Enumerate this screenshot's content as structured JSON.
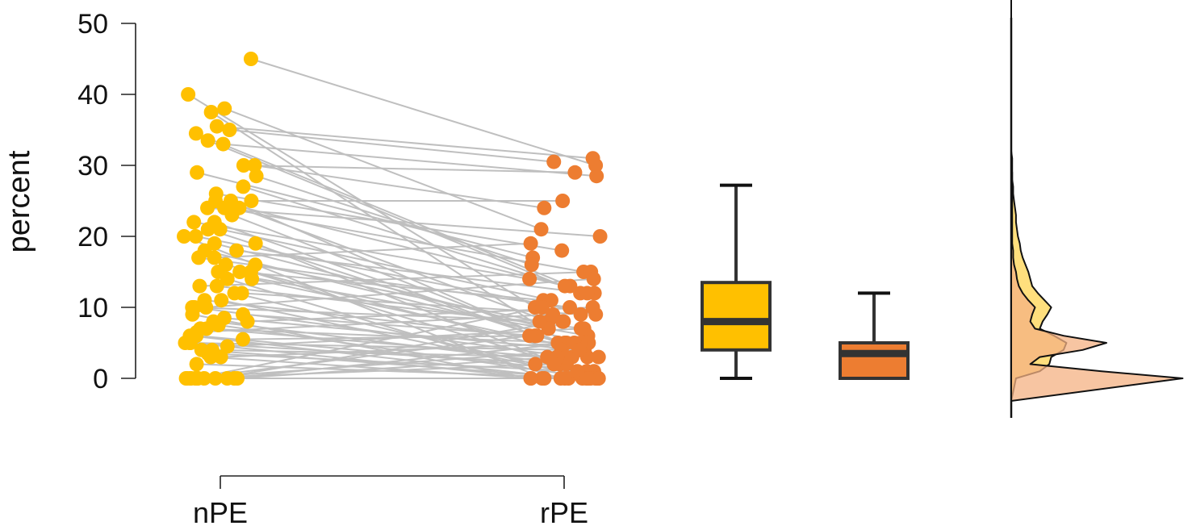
{
  "chart_data": {
    "type": "paired-dot-box-density",
    "title": "",
    "ylabel": "percent",
    "xlabel": "",
    "ylim": [
      0,
      50
    ],
    "yticks": [
      0,
      10,
      20,
      30,
      40,
      50
    ],
    "grid": false,
    "categories": [
      "nPE",
      "rPE"
    ],
    "colors": {
      "nPE": "#FFC000",
      "rPE": "#ED7D31",
      "lines": "#BFBFBF",
      "box_outline": "#333333",
      "density_nPE": "#FFD966",
      "density_rPE": "#F4B183"
    },
    "pairs": [
      [
        45,
        30
      ],
      [
        40,
        10
      ],
      [
        38,
        21
      ],
      [
        37.5,
        5
      ],
      [
        35.5,
        31
      ],
      [
        35,
        30.5
      ],
      [
        34.5,
        13
      ],
      [
        33.5,
        12
      ],
      [
        33,
        28.5
      ],
      [
        30,
        24
      ],
      [
        30,
        29
      ],
      [
        29,
        17
      ],
      [
        28.5,
        16
      ],
      [
        27,
        13
      ],
      [
        26,
        18
      ],
      [
        25,
        25
      ],
      [
        25,
        12
      ],
      [
        25,
        5
      ],
      [
        24,
        20
      ],
      [
        24,
        8
      ],
      [
        24,
        15
      ],
      [
        23,
        3
      ],
      [
        22,
        6
      ],
      [
        22,
        14
      ],
      [
        21,
        4
      ],
      [
        21,
        11
      ],
      [
        20,
        0
      ],
      [
        20,
        9
      ],
      [
        19,
        7
      ],
      [
        19,
        2
      ],
      [
        18,
        12
      ],
      [
        18,
        5
      ],
      [
        17,
        19
      ],
      [
        17,
        10
      ],
      [
        16,
        3
      ],
      [
        16,
        8
      ],
      [
        15,
        1
      ],
      [
        15,
        6
      ],
      [
        15,
        11
      ],
      [
        14,
        0
      ],
      [
        14,
        4
      ],
      [
        13,
        7
      ],
      [
        13,
        15
      ],
      [
        12,
        2
      ],
      [
        12,
        9
      ],
      [
        11,
        5
      ],
      [
        11,
        0
      ],
      [
        10,
        3
      ],
      [
        10,
        8
      ],
      [
        10,
        14
      ],
      [
        9,
        0
      ],
      [
        9,
        6
      ],
      [
        8.5,
        4
      ],
      [
        8,
        2
      ],
      [
        8,
        10
      ],
      [
        7.5,
        0
      ],
      [
        7,
        5
      ],
      [
        7,
        3
      ],
      [
        6.5,
        9
      ],
      [
        6,
        1
      ],
      [
        6,
        0
      ],
      [
        5.5,
        6
      ],
      [
        5,
        2
      ],
      [
        5,
        0
      ],
      [
        5,
        4
      ],
      [
        4.5,
        7
      ],
      [
        4,
        0
      ],
      [
        4,
        3
      ],
      [
        3.5,
        1
      ],
      [
        3,
        0
      ],
      [
        3,
        5
      ],
      [
        2,
        0
      ],
      [
        0,
        0
      ],
      [
        0,
        0
      ],
      [
        0,
        5
      ],
      [
        0,
        10
      ],
      [
        0,
        3
      ],
      [
        0,
        0
      ],
      [
        0,
        2
      ],
      [
        0,
        0
      ],
      [
        0,
        8
      ],
      [
        0,
        4
      ],
      [
        0,
        0
      ],
      [
        0,
        6
      ]
    ],
    "boxplots": [
      {
        "name": "nPE",
        "min": 0,
        "q1": 4,
        "median": 8,
        "q3": 13.5,
        "max": 27.2
      },
      {
        "name": "rPE",
        "min": 0,
        "q1": 0,
        "median": 3.5,
        "q3": 5,
        "max": 12
      }
    ],
    "density": {
      "y": [
        0,
        1,
        2,
        3,
        4,
        5,
        6,
        7,
        8,
        9,
        10,
        11,
        12,
        13,
        14,
        15,
        16,
        17,
        18,
        19,
        20,
        21,
        22,
        23,
        24,
        25,
        26,
        27,
        28,
        29,
        30,
        31,
        32,
        35,
        40,
        45,
        50,
        55
      ],
      "nPE": [
        0.05,
        0.3,
        0.4,
        0.42,
        0.55,
        0.58,
        0.45,
        0.3,
        0.33,
        0.38,
        0.42,
        0.35,
        0.28,
        0.22,
        0.2,
        0.18,
        0.15,
        0.12,
        0.1,
        0.09,
        0.07,
        0.06,
        0.05,
        0.05,
        0.04,
        0.03,
        0.02,
        0.02,
        0.01,
        0.01,
        0.01,
        0.01,
        0.0,
        0.0,
        0.0,
        0.0,
        0.0,
        0.0
      ],
      "rPE": [
        1.8,
        0.95,
        0.2,
        0.3,
        0.75,
        1.0,
        0.55,
        0.25,
        0.2,
        0.22,
        0.25,
        0.18,
        0.12,
        0.08,
        0.06,
        0.05,
        0.03,
        0.02,
        0.02,
        0.01,
        0.01,
        0.01,
        0.01,
        0.01,
        0.01,
        0.01,
        0.01,
        0.01,
        0.01,
        0.01,
        0.0,
        0.0,
        0.0,
        0.0,
        0.0,
        0.0,
        0.0,
        0.0
      ]
    }
  }
}
